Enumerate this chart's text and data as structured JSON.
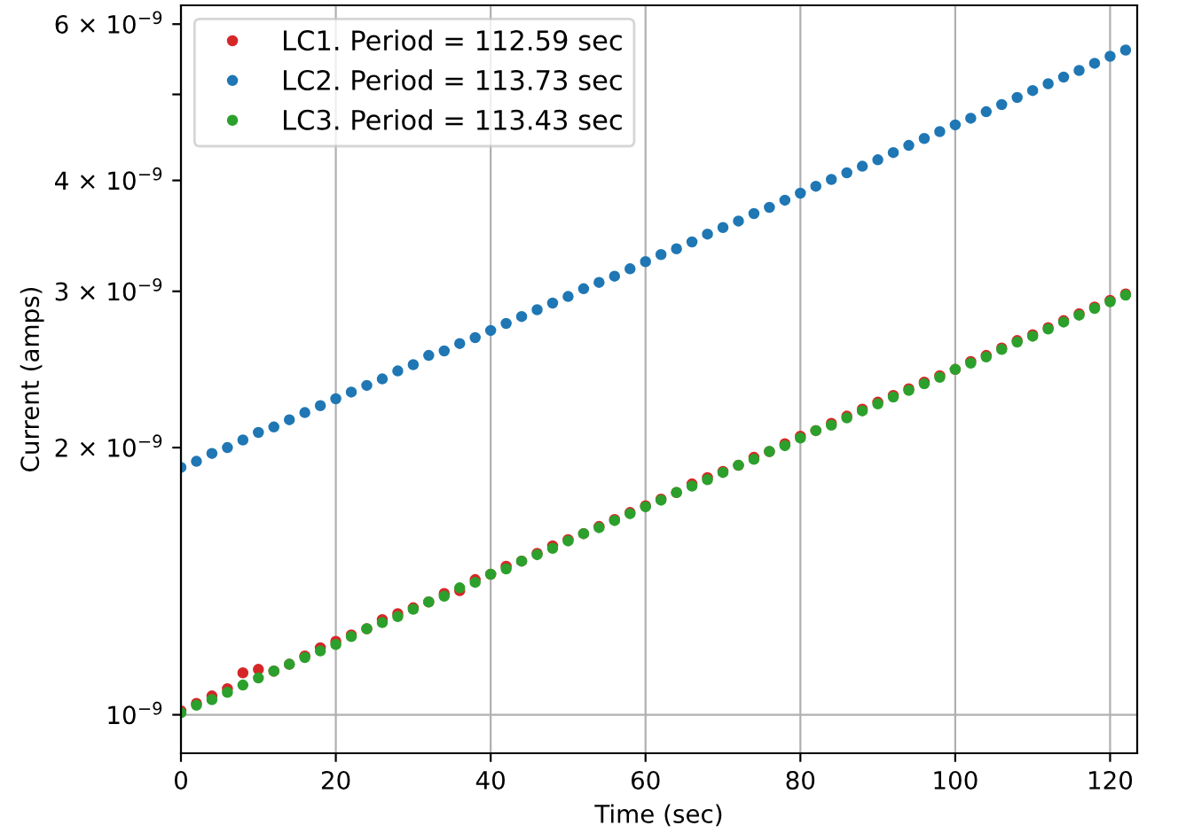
{
  "chart_data": {
    "type": "scatter",
    "xlabel": "Time (sec)",
    "ylabel": "Current (amps)",
    "x": [
      0,
      2,
      4,
      6,
      8,
      10,
      12,
      14,
      16,
      18,
      20,
      22,
      24,
      26,
      28,
      30,
      32,
      34,
      36,
      38,
      40,
      42,
      44,
      46,
      48,
      50,
      52,
      54,
      56,
      58,
      60,
      62,
      64,
      66,
      68,
      70,
      72,
      74,
      76,
      78,
      80,
      82,
      84,
      86,
      88,
      90,
      92,
      94,
      96,
      98,
      100,
      102,
      104,
      106,
      108,
      110,
      112,
      114,
      116,
      118,
      120,
      122
    ],
    "series": [
      {
        "name": "LC1. Period = 112.59 sec",
        "color": "#d62728",
        "values": [
          1.01e-09,
          1.03e-09,
          1.05e-09,
          1.07e-09,
          1.115e-09,
          1.125e-09,
          1.12e-09,
          1.14e-09,
          1.165e-09,
          1.19e-09,
          1.21e-09,
          1.23e-09,
          1.25e-09,
          1.28e-09,
          1.3e-09,
          1.32e-09,
          1.34e-09,
          1.37e-09,
          1.38e-09,
          1.42e-09,
          1.44e-09,
          1.47e-09,
          1.49e-09,
          1.52e-09,
          1.55e-09,
          1.575e-09,
          1.6e-09,
          1.63e-09,
          1.66e-09,
          1.69e-09,
          1.72e-09,
          1.75e-09,
          1.78e-09,
          1.82e-09,
          1.85e-09,
          1.88e-09,
          1.91e-09,
          1.95e-09,
          1.98e-09,
          2.02e-09,
          2.06e-09,
          2.09e-09,
          2.13e-09,
          2.17e-09,
          2.21e-09,
          2.25e-09,
          2.29e-09,
          2.33e-09,
          2.37e-09,
          2.41e-09,
          2.45e-09,
          2.5e-09,
          2.54e-09,
          2.59e-09,
          2.64e-09,
          2.68e-09,
          2.73e-09,
          2.78e-09,
          2.83e-09,
          2.88e-09,
          2.93e-09,
          2.98e-09
        ]
      },
      {
        "name": "LC2. Period = 113.73 sec",
        "color": "#1f77b4",
        "values": [
          1.9e-09,
          1.93e-09,
          1.97e-09,
          2e-09,
          2.04e-09,
          2.08e-09,
          2.11e-09,
          2.15e-09,
          2.19e-09,
          2.23e-09,
          2.27e-09,
          2.31e-09,
          2.35e-09,
          2.39e-09,
          2.44e-09,
          2.48e-09,
          2.54e-09,
          2.57e-09,
          2.62e-09,
          2.66e-09,
          2.71e-09,
          2.76e-09,
          2.81e-09,
          2.86e-09,
          2.91e-09,
          2.96e-09,
          3.02e-09,
          3.07e-09,
          3.12e-09,
          3.18e-09,
          3.24e-09,
          3.3e-09,
          3.35e-09,
          3.41e-09,
          3.48e-09,
          3.54e-09,
          3.6e-09,
          3.67e-09,
          3.73e-09,
          3.8e-09,
          3.87e-09,
          3.94e-09,
          4.01e-09,
          4.08e-09,
          4.15e-09,
          4.22e-09,
          4.3e-09,
          4.38e-09,
          4.46e-09,
          4.54e-09,
          4.62e-09,
          4.7e-09,
          4.78e-09,
          4.87e-09,
          4.96e-09,
          5.05e-09,
          5.14e-09,
          5.23e-09,
          5.32e-09,
          5.42e-09,
          5.52e-09,
          5.61e-09
        ]
      },
      {
        "name": "LC3. Period = 113.43 sec",
        "color": "#2ca02c",
        "values": [
          1.005e-09,
          1.025e-09,
          1.04e-09,
          1.06e-09,
          1.08e-09,
          1.1e-09,
          1.12e-09,
          1.14e-09,
          1.16e-09,
          1.18e-09,
          1.2e-09,
          1.225e-09,
          1.25e-09,
          1.27e-09,
          1.29e-09,
          1.315e-09,
          1.34e-09,
          1.36e-09,
          1.39e-09,
          1.41e-09,
          1.44e-09,
          1.46e-09,
          1.49e-09,
          1.515e-09,
          1.54e-09,
          1.57e-09,
          1.6e-09,
          1.625e-09,
          1.655e-09,
          1.685e-09,
          1.715e-09,
          1.745e-09,
          1.78e-09,
          1.81e-09,
          1.84e-09,
          1.875e-09,
          1.91e-09,
          1.94e-09,
          1.98e-09,
          2.01e-09,
          2.05e-09,
          2.09e-09,
          2.12e-09,
          2.16e-09,
          2.2e-09,
          2.24e-09,
          2.28e-09,
          2.32e-09,
          2.36e-09,
          2.4e-09,
          2.45e-09,
          2.49e-09,
          2.53e-09,
          2.58e-09,
          2.63e-09,
          2.67e-09,
          2.72e-09,
          2.77e-09,
          2.82e-09,
          2.87e-09,
          2.92e-09,
          2.97e-09
        ]
      }
    ],
    "log": "y",
    "xlim": [
      0,
      123.5
    ],
    "xticks": [
      0,
      20,
      40,
      60,
      80,
      100,
      120
    ],
    "ylim": [
      9.05e-10,
      6.3e-09
    ],
    "yticks": [
      {
        "value": 1e-09,
        "label": "10$^{−9}$"
      },
      {
        "value": 2e-09,
        "label": "2 × 10$^{−9}$"
      },
      {
        "value": 3e-09,
        "label": "3 × 10$^{−9}$"
      },
      {
        "value": 4e-09,
        "label": "4 × 10$^{−9}$"
      },
      {
        "value": 5e-09,
        "label": null
      },
      {
        "value": 6e-09,
        "label": "6 × 10$^{−9}$"
      }
    ],
    "grid": "x",
    "ref_lines": [
      {
        "axis": "y",
        "value": 1e-09,
        "color": "#b0b0b0"
      }
    ],
    "legend": "top left",
    "marker": "circle"
  }
}
